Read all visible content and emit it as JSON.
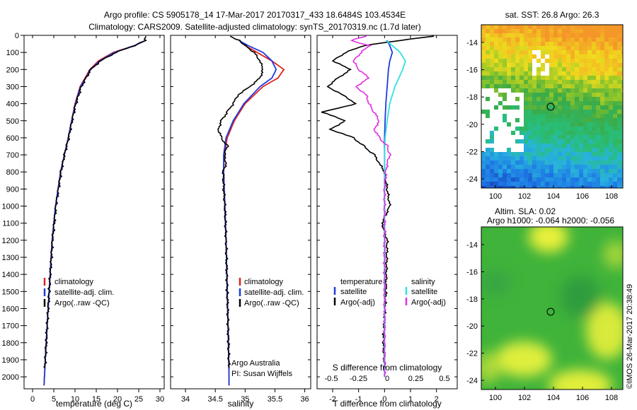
{
  "title": {
    "line1": "Argo profile: CS 5905178_14 17-Mar-2017 20170317_433 18.6484S 103.4534E",
    "line2": "Climatology: CARS2009. Satellite-adjusted climatology: synTS_20170319.nc (1.7d later)"
  },
  "colors": {
    "clim": "#e02020",
    "sat": "#1e3cdc",
    "argo": "#000000",
    "sat_s": "#30e0e0",
    "argo_s": "#e030e0"
  },
  "chart_data": [
    {
      "id": "temperature",
      "type": "line",
      "xlabel": "temperature (deg C)",
      "ylabel": "",
      "xlim": [
        -2,
        31
      ],
      "ylim": [
        2070,
        0
      ],
      "x_ticks": [
        0,
        5,
        10,
        15,
        20,
        25,
        30
      ],
      "y_ticks": [
        0,
        100,
        200,
        300,
        400,
        500,
        600,
        700,
        800,
        900,
        1000,
        1100,
        1200,
        1300,
        1400,
        1500,
        1600,
        1700,
        1800,
        1900,
        2000
      ],
      "legend": [
        "climatology",
        "satellite-adj. clim.",
        "Argo(..raw -QC)"
      ],
      "series": [
        {
          "name": "climatology",
          "color": "clim",
          "depth": [
            30,
            60,
            100,
            150,
            200,
            300,
            400,
            500,
            600,
            700,
            800,
            1000,
            1200,
            1500,
            1800,
            2000,
            2050
          ],
          "values": [
            26.6,
            24,
            19,
            15.5,
            13.5,
            11.2,
            10,
            9.2,
            8.4,
            7.5,
            6.6,
            5.4,
            4.6,
            3.9,
            3.2,
            2.8,
            2.7
          ]
        },
        {
          "name": "satellite-adj. clim.",
          "color": "sat",
          "depth": [
            30,
            60,
            100,
            150,
            200,
            300,
            400,
            500,
            600,
            700,
            800,
            1000,
            1200,
            1500,
            1800,
            2000,
            2050
          ],
          "values": [
            26.6,
            24,
            19.3,
            15.8,
            13.7,
            11.3,
            10.1,
            9.2,
            8.4,
            7.5,
            6.6,
            5.4,
            4.6,
            3.9,
            3.2,
            2.8,
            2.7
          ]
        },
        {
          "name": "Argo(..raw -QC)",
          "color": "argo",
          "depth": [
            5,
            30,
            60,
            100,
            150,
            200,
            300,
            400,
            500,
            600,
            700,
            800,
            1000,
            1200,
            1500,
            1800,
            1950
          ],
          "values": [
            26.7,
            26.5,
            24,
            19.6,
            16,
            13.7,
            11.5,
            10.2,
            9.3,
            8.5,
            7.5,
            6.7,
            5.5,
            4.7,
            3.9,
            3.2,
            2.9
          ]
        }
      ]
    },
    {
      "id": "salinity",
      "type": "line",
      "xlabel": "salinity",
      "xlim": [
        33.75,
        36.1
      ],
      "ylim": [
        2070,
        0
      ],
      "x_ticks": [
        34,
        34.5,
        35,
        35.5,
        36
      ],
      "legend": [
        "climatology",
        "satellite-adj. clim.",
        "Argo(..raw -QC)"
      ],
      "annotation": [
        "Argo Australia",
        "PI: Susan Wijffels"
      ],
      "series": [
        {
          "name": "climatology",
          "color": "clim",
          "depth": [
            30,
            60,
            100,
            150,
            200,
            250,
            300,
            400,
            500,
            600,
            700,
            800,
            1000,
            1200,
            1500,
            1800,
            2000,
            2050
          ],
          "values": [
            34.9,
            35.0,
            35.2,
            35.45,
            35.65,
            35.55,
            35.3,
            35.0,
            34.82,
            34.7,
            34.65,
            34.64,
            34.66,
            34.68,
            34.7,
            34.72,
            34.73,
            34.73
          ]
        },
        {
          "name": "satellite-adj. clim.",
          "color": "sat",
          "depth": [
            30,
            60,
            100,
            150,
            200,
            250,
            300,
            400,
            500,
            600,
            700,
            800,
            1000,
            1200,
            1500,
            1800,
            2000,
            2050
          ],
          "values": [
            34.9,
            35.05,
            35.3,
            35.45,
            35.52,
            35.45,
            35.25,
            34.98,
            34.8,
            34.68,
            34.64,
            34.64,
            34.66,
            34.68,
            34.7,
            34.72,
            34.73,
            34.73
          ]
        },
        {
          "name": "Argo(..raw -QC)",
          "color": "argo",
          "depth": [
            5,
            30,
            60,
            100,
            150,
            200,
            250,
            300,
            350,
            400,
            450,
            500,
            550,
            600,
            650,
            700,
            750,
            800,
            900,
            1000,
            1200,
            1500,
            1800,
            1950
          ],
          "values": [
            34.75,
            34.9,
            35.0,
            35.15,
            35.25,
            35.3,
            35.25,
            35.08,
            34.88,
            34.8,
            34.7,
            34.6,
            34.55,
            34.6,
            34.7,
            34.65,
            34.68,
            34.63,
            34.64,
            34.66,
            34.68,
            34.7,
            34.72,
            34.73
          ]
        }
      ]
    },
    {
      "id": "difference",
      "type": "line",
      "xlabel": "T difference from climatology",
      "xlabel_top": "S difference from climatology",
      "xlim": [
        -2.6,
        2.8
      ],
      "ylim": [
        2070,
        0
      ],
      "x_ticks": [
        -2,
        -1,
        0,
        1,
        2
      ],
      "x_ticks_top": [
        "-0.5",
        "-0.25",
        "0",
        "0.25",
        "0.5"
      ],
      "legend_t": {
        "title": "temperature",
        "items": [
          "satellite",
          "Argo(-adj)"
        ]
      },
      "legend_s": {
        "title": "salinity",
        "items": [
          "satellite",
          "Argo(-adj)"
        ]
      },
      "series": [
        {
          "name": "T satellite",
          "color": "sat",
          "depth": [
            30,
            60,
            100,
            150,
            200,
            300,
            400,
            500,
            600,
            700,
            800,
            1000,
            1500,
            2000
          ],
          "values": [
            0.1,
            0.2,
            0.3,
            0.2,
            0.15,
            0.1,
            0.05,
            0.02,
            0,
            0,
            0,
            0,
            0,
            0
          ]
        },
        {
          "name": "T Argo(-adj)",
          "color": "argo",
          "depth": [
            5,
            30,
            60,
            100,
            150,
            200,
            250,
            300,
            350,
            400,
            450,
            500,
            550,
            600,
            650,
            700,
            750,
            800,
            900,
            1000,
            1100,
            1200,
            1500,
            1800,
            1950
          ],
          "values": [
            1.9,
            0.6,
            -0.8,
            -1.5,
            -2.0,
            -1.3,
            -1.8,
            -2.2,
            -1.6,
            -1.1,
            -2.4,
            -1.5,
            -2.1,
            -1.2,
            -0.8,
            -0.4,
            -0.2,
            0,
            0.1,
            0.2,
            -0.1,
            0.1,
            0.05,
            -0.05,
            0
          ]
        },
        {
          "name": "S satellite",
          "color": "sat_s",
          "depth": [
            30,
            60,
            100,
            150,
            200,
            300,
            400,
            500,
            600,
            700,
            800,
            1000,
            1500,
            2000
          ],
          "values": [
            0.05,
            0.3,
            0.6,
            0.8,
            0.7,
            0.4,
            0.2,
            0.1,
            0.02,
            0,
            0,
            0,
            0,
            0
          ]
        },
        {
          "name": "S Argo(-adj)",
          "color": "argo_s",
          "depth": [
            5,
            30,
            60,
            100,
            150,
            200,
            250,
            300,
            350,
            400,
            450,
            500,
            550,
            600,
            650,
            700,
            750,
            800,
            900,
            1000,
            1500,
            2000
          ],
          "values": [
            -0.7,
            -1.3,
            -0.6,
            -0.9,
            -1.2,
            -1.0,
            -0.6,
            -1.1,
            -0.7,
            -0.6,
            -0.4,
            -0.2,
            -0.4,
            -0.2,
            0.1,
            0.2,
            0.1,
            0.05,
            0,
            0,
            0,
            0
          ]
        }
      ]
    },
    {
      "id": "sst_map",
      "type": "heatmap",
      "title": "sat. SST: 26.8  Argo: 26.3",
      "x_ticks": [
        "100",
        "102",
        "104",
        "106",
        "108"
      ],
      "y_ticks": [
        "-14",
        "-16",
        "-18",
        "-20",
        "-22",
        "-24"
      ],
      "argo_position": {
        "lon": 103.45,
        "lat": -18.65
      }
    },
    {
      "id": "sla_map",
      "type": "heatmap",
      "title_line1": "Altim. SLA: 0.02",
      "title_line2": "Argo h1000: -0.064  h2000: -0.056",
      "x_ticks": [
        "100",
        "102",
        "104",
        "106",
        "108"
      ],
      "y_ticks": [
        "-14",
        "-16",
        "-18",
        "-20",
        "-22",
        "-24"
      ],
      "argo_position": {
        "lon": 103.45,
        "lat": -18.65
      }
    }
  ],
  "footer": "©IMOS 26-Mar-2017 20:38:49"
}
